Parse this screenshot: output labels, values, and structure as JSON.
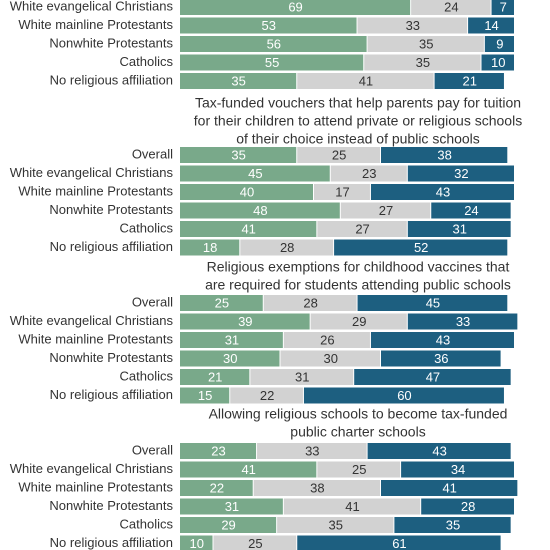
{
  "chart_data": [
    {
      "type": "stacked-bar",
      "categories": [
        "White evangelical Christians",
        "White mainline Protestants",
        "Nonwhite Protestants",
        "Catholics",
        "No religious affiliation"
      ],
      "series": [
        {
          "color": "#79a98a",
          "values": [
            69,
            53,
            56,
            55,
            35
          ]
        },
        {
          "color": "#d2d2d2",
          "values": [
            24,
            33,
            35,
            35,
            41
          ]
        },
        {
          "color": "#1d5f80",
          "values": [
            7,
            14,
            9,
            10,
            21
          ]
        }
      ],
      "xlim": [
        0,
        100
      ]
    },
    {
      "type": "stacked-bar",
      "title": [
        "Tax-funded vouchers that help parents pay for tuition",
        "for their children to attend private or religious schools",
        "of their choice instead of public schools"
      ],
      "categories": [
        "Overall",
        "White evangelical Christians",
        "White mainline Protestants",
        "Nonwhite Protestants",
        "Catholics",
        "No religious affiliation"
      ],
      "series": [
        {
          "color": "#79a98a",
          "values": [
            35,
            45,
            40,
            48,
            41,
            18
          ]
        },
        {
          "color": "#d2d2d2",
          "values": [
            25,
            23,
            17,
            27,
            27,
            28
          ]
        },
        {
          "color": "#1d5f80",
          "values": [
            38,
            32,
            43,
            24,
            31,
            52
          ]
        }
      ],
      "xlim": [
        0,
        100
      ]
    },
    {
      "type": "stacked-bar",
      "title": [
        "Religious exemptions for childhood vaccines that",
        "are required for students attending public schools"
      ],
      "categories": [
        "Overall",
        "White evangelical Christians",
        "White mainline Protestants",
        "Nonwhite Protestants",
        "Catholics",
        "No religious affiliation"
      ],
      "series": [
        {
          "color": "#79a98a",
          "values": [
            25,
            39,
            31,
            30,
            21,
            15
          ]
        },
        {
          "color": "#d2d2d2",
          "values": [
            28,
            29,
            26,
            30,
            31,
            22
          ]
        },
        {
          "color": "#1d5f80",
          "values": [
            45,
            33,
            43,
            36,
            47,
            60
          ]
        }
      ],
      "xlim": [
        0,
        100
      ]
    },
    {
      "type": "stacked-bar",
      "title": [
        "Allowing religious schools to become tax-funded",
        "public charter schools"
      ],
      "categories": [
        "Overall",
        "White evangelical Christians",
        "White mainline Protestants",
        "Nonwhite Protestants",
        "Catholics",
        "No religious affiliation"
      ],
      "series": [
        {
          "color": "#79a98a",
          "values": [
            23,
            41,
            22,
            31,
            29,
            10
          ]
        },
        {
          "color": "#d2d2d2",
          "values": [
            33,
            25,
            38,
            41,
            35,
            25
          ]
        },
        {
          "color": "#1d5f80",
          "values": [
            43,
            34,
            41,
            28,
            35,
            61
          ]
        }
      ],
      "xlim": [
        0,
        100
      ]
    }
  ]
}
